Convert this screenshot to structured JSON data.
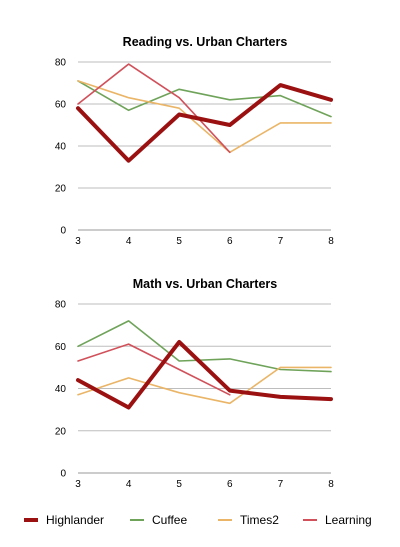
{
  "chart_data": [
    {
      "type": "line",
      "title": "Reading vs. Urban Charters",
      "xlabel": "",
      "ylabel": "",
      "x": [
        3,
        4,
        5,
        6,
        7,
        8
      ],
      "xticks": [
        "3",
        "4",
        "5",
        "6",
        "7",
        "8"
      ],
      "ylim": [
        0,
        80
      ],
      "yticks": [
        "0",
        "20",
        "40",
        "60",
        "80"
      ],
      "grid": true,
      "series": [
        {
          "name": "Highlander",
          "values": [
            58,
            33,
            55,
            50,
            69,
            62
          ]
        },
        {
          "name": "Cuffee",
          "values": [
            71,
            57,
            67,
            62,
            64,
            54
          ]
        },
        {
          "name": "Times2",
          "values": [
            71,
            63,
            58,
            37,
            51,
            51
          ]
        },
        {
          "name": "Learning",
          "values": [
            60,
            79,
            63,
            37,
            null,
            null
          ]
        }
      ]
    },
    {
      "type": "line",
      "title": "Math vs. Urban Charters",
      "xlabel": "",
      "ylabel": "",
      "x": [
        3,
        4,
        5,
        6,
        7,
        8
      ],
      "xticks": [
        "3",
        "4",
        "5",
        "6",
        "7",
        "8"
      ],
      "ylim": [
        0,
        80
      ],
      "yticks": [
        "0",
        "20",
        "40",
        "60",
        "80"
      ],
      "grid": true,
      "series": [
        {
          "name": "Highlander",
          "values": [
            44,
            31,
            62,
            39,
            36,
            35
          ]
        },
        {
          "name": "Cuffee",
          "values": [
            60,
            72,
            53,
            54,
            49,
            48
          ]
        },
        {
          "name": "Times2",
          "values": [
            37,
            45,
            38,
            33,
            50,
            50
          ]
        },
        {
          "name": "Learning",
          "values": [
            53,
            61,
            49,
            37,
            null,
            null
          ]
        }
      ]
    }
  ],
  "legend": {
    "placement": "bottom",
    "items": [
      {
        "name": "Highlander",
        "color": "#9b1111"
      },
      {
        "name": "Cuffee",
        "color": "#6fa35a"
      },
      {
        "name": "Times2",
        "color": "#eab567"
      },
      {
        "name": "Learning",
        "color": "#d1505a"
      }
    ]
  }
}
